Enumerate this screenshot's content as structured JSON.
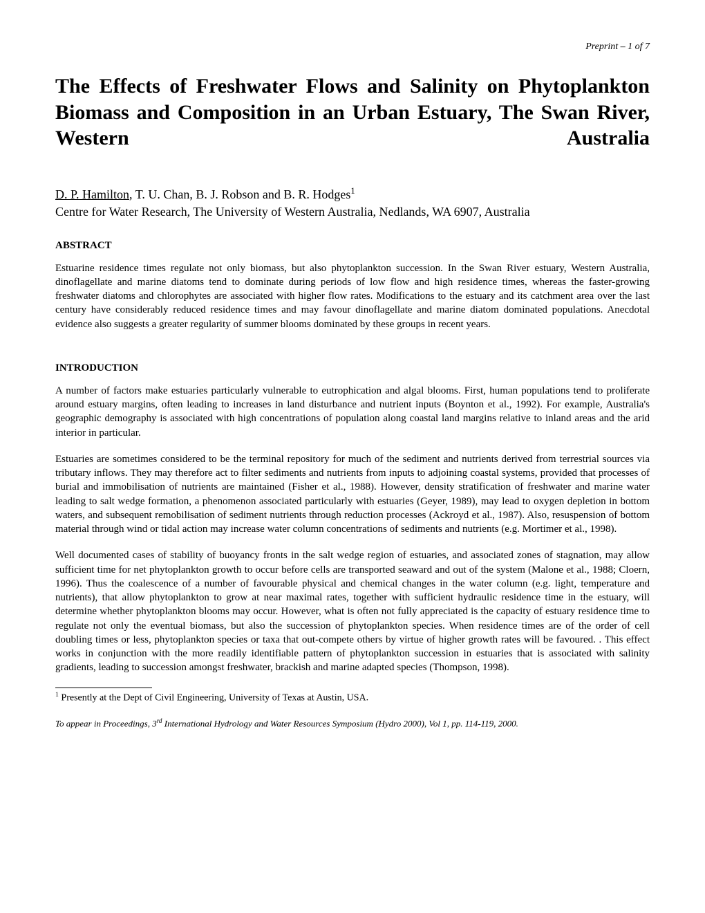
{
  "header": {
    "preprint_label": "Preprint – 1 of 7"
  },
  "title": "The Effects of Freshwater Flows and Salinity on Phytoplankton Biomass and Composition in an Urban Estuary, The Swan River, Western Australia",
  "authors": {
    "primary": "D. P. Hamilton",
    "others": ", T. U. Chan, B. J. Robson and B. R. Hodges",
    "superscript": "1"
  },
  "affiliation": "Centre for Water Research, The University of Western Australia, Nedlands, WA 6907, Australia",
  "abstract": {
    "heading": "ABSTRACT",
    "text": "Estuarine residence times regulate not only biomass, but also phytoplankton succession. In the Swan River estuary, Western Australia, dinoflagellate and marine diatoms tend to dominate during periods of low flow and high residence times, whereas the faster-growing freshwater diatoms and chlorophytes are associated with higher flow rates. Modifications to the estuary and its catchment area over the last century have considerably reduced residence times and may favour dinoflagellate and marine diatom dominated populations. Anecdotal evidence also suggests a greater regularity of summer blooms dominated by these groups in recent years."
  },
  "introduction": {
    "heading": "INTRODUCTION",
    "paragraphs": [
      "A number of factors make estuaries particularly vulnerable to eutrophication and algal blooms. First, human populations tend to proliferate around estuary margins, often leading to increases in land disturbance and nutrient inputs (Boynton et al., 1992). For example, Australia's geographic demography is associated with high concentrations of population along coastal land margins relative to inland areas and the arid interior in particular.",
      "Estuaries are sometimes considered to be the terminal repository for much of the sediment and nutrients derived from terrestrial sources via tributary inflows. They may therefore act to filter sediments and nutrients from inputs to adjoining coastal systems, provided that processes of burial and immobilisation of nutrients are maintained (Fisher et al., 1988). However, density stratification of freshwater and marine water leading to salt wedge formation, a phenomenon associated particularly with estuaries (Geyer, 1989), may lead to oxygen depletion in bottom waters, and subsequent remobilisation of sediment nutrients through reduction processes (Ackroyd et al., 1987). Also, resuspension of bottom material through wind or tidal action may increase water column concentrations of sediments and nutrients (e.g. Mortimer et al., 1998).",
      "Well documented cases of stability of buoyancy fronts in the salt wedge region of estuaries, and associated zones of stagnation, may allow sufficient time for net phytoplankton growth to occur before cells are transported seaward and out of the system (Malone et al., 1988; Cloern, 1996). Thus the coalescence of a number of favourable physical and chemical changes in the water column (e.g. light, temperature and nutrients), that allow phytoplankton to grow at near maximal rates, together with sufficient hydraulic residence time in the estuary, will determine whether phytoplankton blooms may occur. However, what is often not fully appreciated is the capacity of estuary residence time to regulate not only the eventual biomass, but also the succession of phytoplankton species. When residence times are of the order of cell doubling times or less, phytoplankton species or taxa that out-compete others by virtue of higher growth rates will be favoured. . This effect works in conjunction with the more readily identifiable pattern of phytoplankton succession in estuaries that is associated with salinity gradients, leading to succession amongst freshwater, brackish and marine adapted species (Thompson, 1998)."
    ]
  },
  "footnote": {
    "marker": "1",
    "text": " Presently at the Dept of Civil Engineering, University of Texas at Austin, USA."
  },
  "footer": {
    "text_prefix": "To appear in Proceedings, 3",
    "superscript": "rd",
    "text_suffix": " International Hydrology and Water Resources Symposium (Hydro 2000), Vol 1, pp. 114-119, 2000."
  }
}
